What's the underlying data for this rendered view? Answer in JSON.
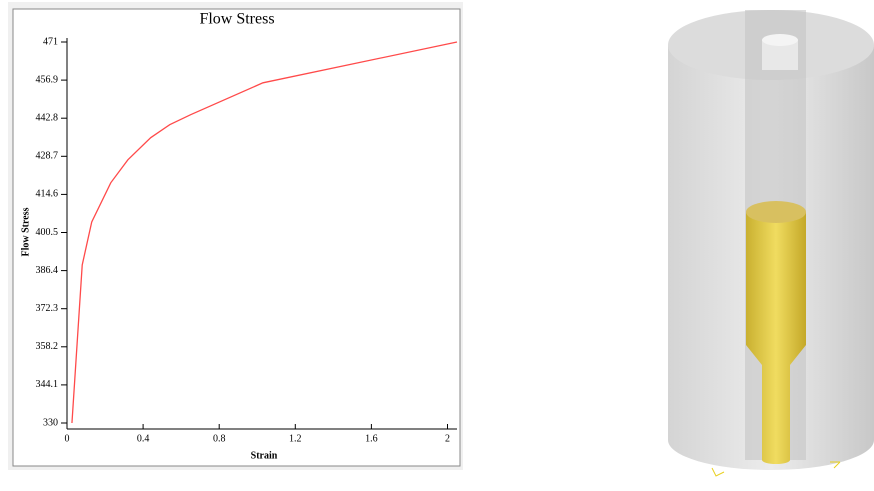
{
  "chart_data": {
    "type": "line",
    "title": "Flow Stress",
    "x_label": "Strain",
    "y_label": "Flow Stress",
    "x": [
      0.026,
      0.08,
      0.13,
      0.23,
      0.32,
      0.44,
      0.54,
      0.65,
      1.03,
      2.05
    ],
    "series": [
      {
        "name": "Flow Stress",
        "color": "#ff4a4a",
        "values": [
          330,
          388.5,
          404.4,
          418.9,
          427.4,
          435.6,
          440.4,
          444.1,
          455.9,
          471
        ]
      }
    ],
    "xlim": [
      0,
      2.05
    ],
    "ylim": [
      330,
      471
    ],
    "xticks": [
      0,
      0.4,
      0.8,
      1.2,
      1.6,
      2
    ],
    "yticks": [
      330,
      344.1,
      358.2,
      372.3,
      386.4,
      400.5,
      414.6,
      428.7,
      442.8,
      456.9,
      471
    ]
  }
}
